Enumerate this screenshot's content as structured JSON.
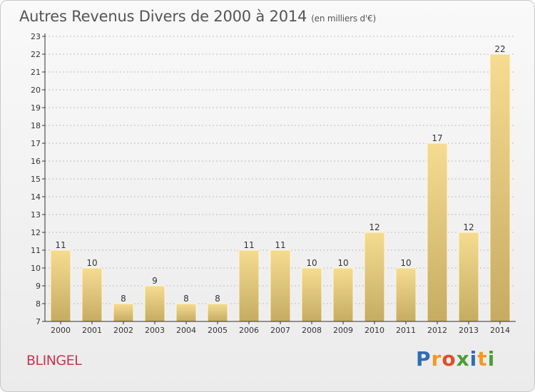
{
  "header": {
    "title": "Autres Revenus Divers de 2000 à 2014",
    "subtitle": "(en milliers d'€)"
  },
  "footer": {
    "commune": "BLINGEL",
    "logo": {
      "letters": [
        "P",
        "r",
        "o",
        "x",
        "i",
        "t",
        "i"
      ],
      "colors": [
        "#2f6db5",
        "#f39a1e",
        "#e04e2a",
        "#4a9e3a",
        "#2f6db5",
        "#f39a1e",
        "#4a9e3a"
      ]
    }
  },
  "colors": {
    "bar_top": "#f5dc91",
    "bar_bottom": "#c5ac62",
    "axis": "#333333",
    "grid": "#bdbdbd"
  },
  "chart_data": {
    "type": "bar",
    "categories": [
      "2000",
      "2001",
      "2002",
      "2003",
      "2004",
      "2005",
      "2006",
      "2007",
      "2008",
      "2009",
      "2010",
      "2011",
      "2012",
      "2013",
      "2014"
    ],
    "values": [
      11,
      10,
      8,
      9,
      8,
      8,
      11,
      11,
      10,
      10,
      12,
      10,
      17,
      12,
      22
    ],
    "ylim": [
      7,
      23
    ],
    "yticks": [
      7,
      8,
      9,
      10,
      11,
      12,
      13,
      14,
      15,
      16,
      17,
      18,
      19,
      20,
      21,
      22,
      23
    ],
    "grid": true,
    "data_labels": true
  }
}
